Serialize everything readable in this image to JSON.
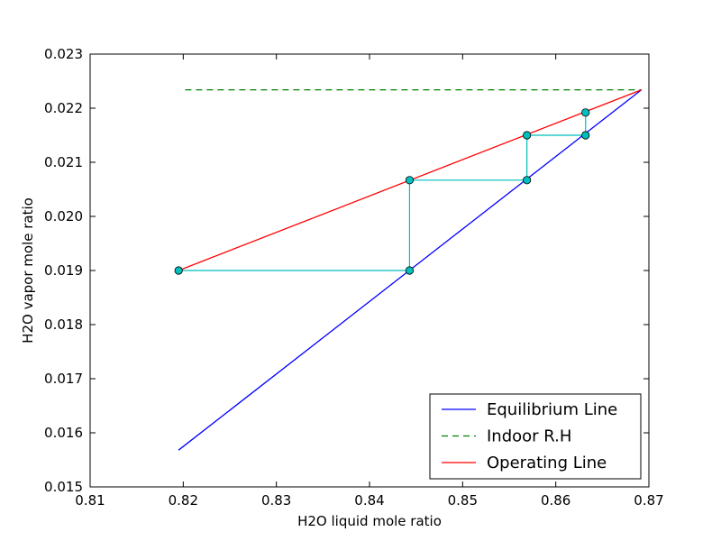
{
  "chart_data": {
    "type": "line",
    "xlabel": "H2O liquid mole ratio",
    "ylabel": "H2O vapor mole ratio",
    "xlim": [
      0.81,
      0.87
    ],
    "ylim": [
      0.015,
      0.023
    ],
    "x_ticks": [
      "0.81",
      "0.82",
      "0.83",
      "0.84",
      "0.85",
      "0.86",
      "0.87"
    ],
    "y_ticks": [
      "0.015",
      "0.016",
      "0.017",
      "0.018",
      "0.019",
      "0.020",
      "0.021",
      "0.022",
      "0.023"
    ],
    "grid": false,
    "legend_position": "bottom-right",
    "series": [
      {
        "name": "Equilibrium Line",
        "style": "solid",
        "color": "#0000ff",
        "points": [
          [
            0.8195,
            0.01568
          ],
          [
            0.8692,
            0.02234
          ]
        ]
      },
      {
        "name": "Indoor R.H",
        "style": "dashed",
        "color": "#008000",
        "points": [
          [
            0.8202,
            0.02234
          ],
          [
            0.8692,
            0.02234
          ]
        ]
      },
      {
        "name": "Operating Line",
        "style": "solid",
        "color": "#ff0000",
        "points": [
          [
            0.8195,
            0.019
          ],
          [
            0.8692,
            0.02234
          ]
        ]
      }
    ],
    "stages": {
      "color": "#00bfbf",
      "points": [
        [
          0.8195,
          0.019
        ],
        [
          0.8443,
          0.019
        ],
        [
          0.8443,
          0.02067
        ],
        [
          0.8569,
          0.02067
        ],
        [
          0.8569,
          0.0215
        ],
        [
          0.8632,
          0.0215
        ],
        [
          0.8632,
          0.02192
        ]
      ]
    }
  }
}
